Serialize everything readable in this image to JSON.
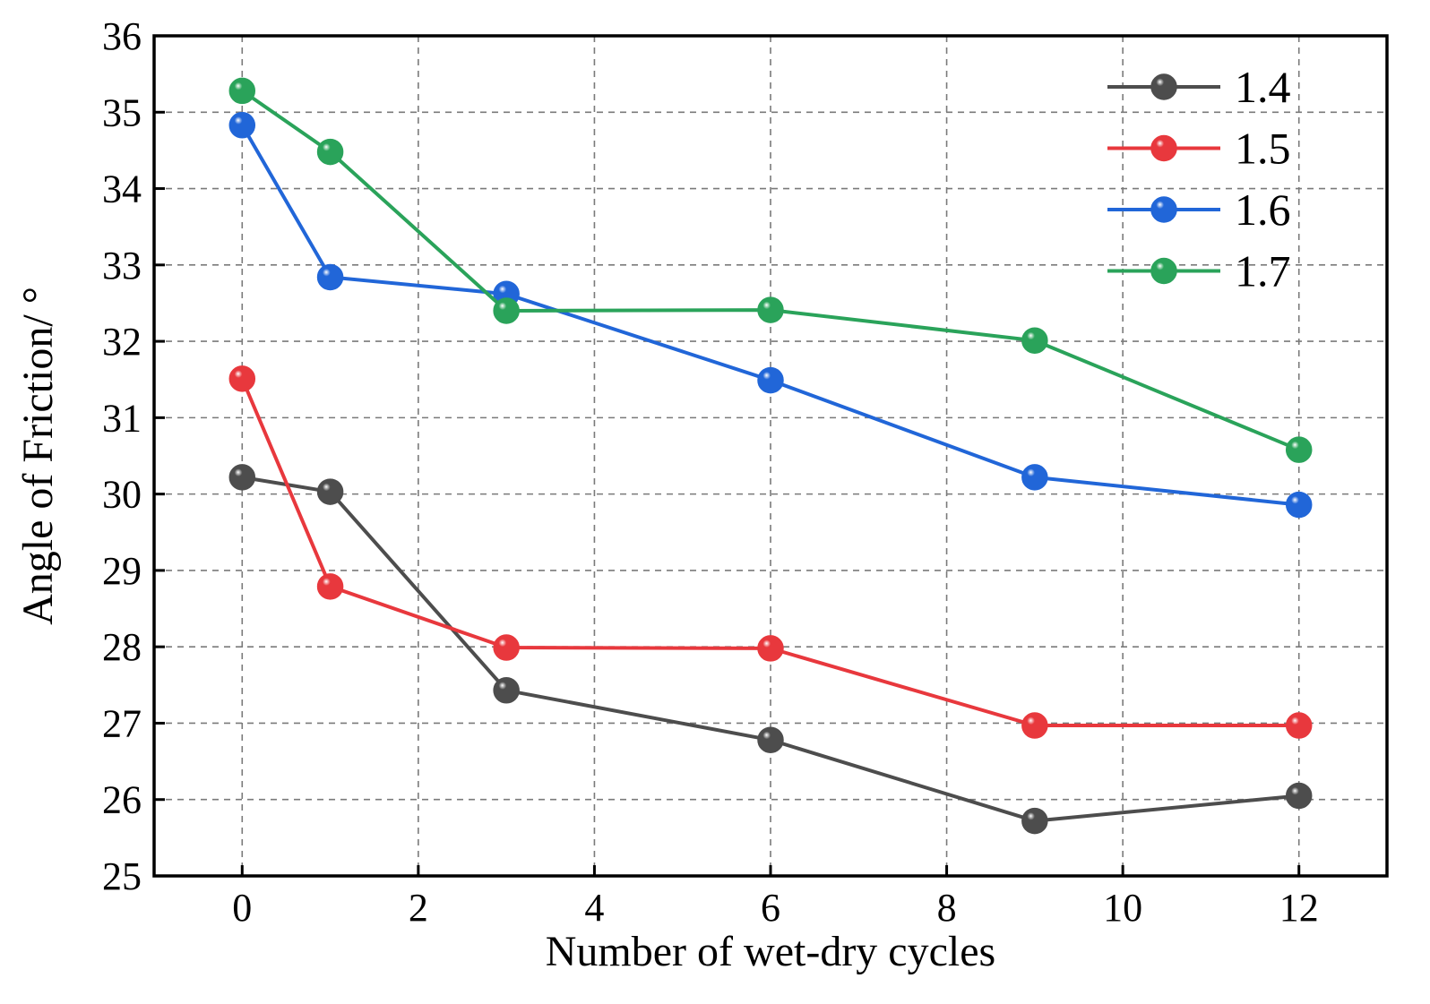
{
  "chart_data": {
    "type": "line",
    "title": "",
    "xlabel": "Number of wet-dry cycles",
    "ylabel": "Angle of Friction/ °",
    "xlim": [
      -1,
      13
    ],
    "ylim": [
      25,
      36
    ],
    "xticks": [
      0,
      2,
      4,
      6,
      8,
      10,
      12
    ],
    "yticks": [
      25,
      26,
      27,
      28,
      29,
      30,
      31,
      32,
      33,
      34,
      35,
      36
    ],
    "grid": true,
    "legend_position": "top-right",
    "x": [
      0,
      1,
      3,
      6,
      9,
      12
    ],
    "series": [
      {
        "name": "1.4",
        "color": "#4d4d4d",
        "values": [
          30.22,
          30.03,
          27.43,
          26.78,
          25.72,
          26.05
        ]
      },
      {
        "name": "1.5",
        "color": "#e8383d",
        "values": [
          31.51,
          28.79,
          27.99,
          27.98,
          26.97,
          26.97
        ]
      },
      {
        "name": "1.6",
        "color": "#2166d8",
        "values": [
          34.83,
          32.84,
          32.62,
          31.49,
          30.22,
          29.86
        ]
      },
      {
        "name": "1.7",
        "color": "#2aa35a",
        "values": [
          35.28,
          34.48,
          32.4,
          32.41,
          32.01,
          30.58
        ]
      }
    ]
  }
}
